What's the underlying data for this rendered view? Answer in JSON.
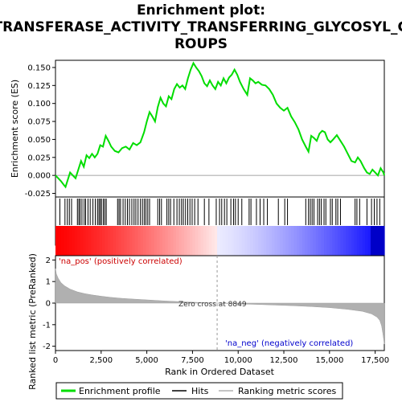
{
  "chart_data": {
    "type": "line",
    "title_lines": [
      "Enrichment plot:",
      "TRANSFERASE_ACTIVITY_TRANSFERRING_GLYCOSYL_G",
      "ROUPS"
    ],
    "xlabel": "Rank in Ordered Dataset",
    "es_ylabel": "Enrichment score (ES)",
    "metric_ylabel": "Ranked list metric (PreRanked)",
    "xlim": [
      0,
      18000
    ],
    "es_ylim": [
      -0.03,
      0.16
    ],
    "metric_ylim": [
      -2.2,
      2.2
    ],
    "x_ticks": [
      0,
      2500,
      5000,
      7500,
      10000,
      12500,
      15000,
      17500
    ],
    "x_tick_labels": [
      "0",
      "2,500",
      "5,000",
      "7,500",
      "10,000",
      "12,500",
      "15,000",
      "17,500"
    ],
    "es_ticks": [
      -0.025,
      0.0,
      0.025,
      0.05,
      0.075,
      0.1,
      0.125,
      0.15
    ],
    "es_tick_labels": [
      "-0.025",
      "0.000",
      "0.025",
      "0.050",
      "0.075",
      "0.100",
      "0.125",
      "0.150"
    ],
    "metric_ticks": [
      -2,
      -1,
      0,
      1,
      2
    ],
    "metric_tick_labels": [
      "-2",
      "-1",
      "0",
      "1",
      "2"
    ],
    "zero_cross_label": "Zero cross at 8849",
    "zero_cross": 8849,
    "pos_label": "'na_pos' (positively correlated)",
    "neg_label": "'na_neg' (negatively correlated)",
    "legend": [
      "Enrichment profile",
      "Hits",
      "Ranking metric scores"
    ],
    "colors": {
      "es_line": "#00dd00",
      "hits": "#000000",
      "metric": "#b0b0b0",
      "pos": "#ff0000",
      "neg": "#0000ff"
    },
    "es_profile": [
      [
        0,
        0.0
      ],
      [
        150,
        -0.004
      ],
      [
        300,
        -0.008
      ],
      [
        450,
        -0.013
      ],
      [
        550,
        -0.016
      ],
      [
        650,
        -0.008
      ],
      [
        800,
        0.004
      ],
      [
        950,
        0.0
      ],
      [
        1100,
        -0.004
      ],
      [
        1250,
        0.008
      ],
      [
        1400,
        0.02
      ],
      [
        1550,
        0.012
      ],
      [
        1700,
        0.028
      ],
      [
        1850,
        0.024
      ],
      [
        2000,
        0.03
      ],
      [
        2150,
        0.025
      ],
      [
        2300,
        0.03
      ],
      [
        2450,
        0.042
      ],
      [
        2600,
        0.04
      ],
      [
        2750,
        0.055
      ],
      [
        2900,
        0.048
      ],
      [
        3050,
        0.04
      ],
      [
        3250,
        0.034
      ],
      [
        3450,
        0.032
      ],
      [
        3650,
        0.038
      ],
      [
        3850,
        0.04
      ],
      [
        4050,
        0.036
      ],
      [
        4250,
        0.045
      ],
      [
        4450,
        0.042
      ],
      [
        4650,
        0.046
      ],
      [
        4850,
        0.06
      ],
      [
        5000,
        0.075
      ],
      [
        5150,
        0.088
      ],
      [
        5300,
        0.082
      ],
      [
        5450,
        0.075
      ],
      [
        5600,
        0.095
      ],
      [
        5750,
        0.108
      ],
      [
        5900,
        0.1
      ],
      [
        6050,
        0.096
      ],
      [
        6200,
        0.11
      ],
      [
        6350,
        0.106
      ],
      [
        6500,
        0.12
      ],
      [
        6650,
        0.127
      ],
      [
        6800,
        0.122
      ],
      [
        6950,
        0.125
      ],
      [
        7100,
        0.12
      ],
      [
        7250,
        0.135
      ],
      [
        7400,
        0.147
      ],
      [
        7550,
        0.156
      ],
      [
        7700,
        0.15
      ],
      [
        7850,
        0.145
      ],
      [
        8000,
        0.138
      ],
      [
        8150,
        0.128
      ],
      [
        8300,
        0.124
      ],
      [
        8450,
        0.132
      ],
      [
        8600,
        0.125
      ],
      [
        8750,
        0.12
      ],
      [
        8900,
        0.13
      ],
      [
        9050,
        0.125
      ],
      [
        9200,
        0.135
      ],
      [
        9350,
        0.128
      ],
      [
        9500,
        0.136
      ],
      [
        9650,
        0.14
      ],
      [
        9800,
        0.147
      ],
      [
        9950,
        0.14
      ],
      [
        10100,
        0.13
      ],
      [
        10300,
        0.12
      ],
      [
        10500,
        0.112
      ],
      [
        10650,
        0.135
      ],
      [
        10800,
        0.132
      ],
      [
        10950,
        0.128
      ],
      [
        11100,
        0.13
      ],
      [
        11300,
        0.126
      ],
      [
        11500,
        0.125
      ],
      [
        11700,
        0.12
      ],
      [
        11900,
        0.112
      ],
      [
        12100,
        0.1
      ],
      [
        12300,
        0.094
      ],
      [
        12500,
        0.09
      ],
      [
        12700,
        0.094
      ],
      [
        12900,
        0.082
      ],
      [
        13100,
        0.074
      ],
      [
        13300,
        0.064
      ],
      [
        13500,
        0.05
      ],
      [
        13700,
        0.04
      ],
      [
        13850,
        0.033
      ],
      [
        14000,
        0.055
      ],
      [
        14150,
        0.052
      ],
      [
        14300,
        0.048
      ],
      [
        14450,
        0.058
      ],
      [
        14600,
        0.062
      ],
      [
        14750,
        0.06
      ],
      [
        14900,
        0.05
      ],
      [
        15050,
        0.046
      ],
      [
        15200,
        0.05
      ],
      [
        15400,
        0.056
      ],
      [
        15600,
        0.048
      ],
      [
        15800,
        0.04
      ],
      [
        16000,
        0.03
      ],
      [
        16200,
        0.02
      ],
      [
        16400,
        0.018
      ],
      [
        16550,
        0.025
      ],
      [
        16700,
        0.02
      ],
      [
        16900,
        0.01
      ],
      [
        17050,
        0.004
      ],
      [
        17200,
        0.002
      ],
      [
        17350,
        0.008
      ],
      [
        17500,
        0.004
      ],
      [
        17650,
        0.0
      ],
      [
        17800,
        0.01
      ],
      [
        17950,
        0.004
      ],
      [
        18000,
        0.0
      ]
    ],
    "hits": [
      240,
      520,
      650,
      760,
      880,
      1200,
      1280,
      1350,
      1450,
      1570,
      1650,
      1780,
      1900,
      2050,
      2180,
      2300,
      2380,
      2450,
      2520,
      2620,
      2700,
      2780,
      3400,
      3480,
      3560,
      3700,
      3820,
      3940,
      4050,
      4180,
      4300,
      4400,
      4520,
      4650,
      4760,
      4860,
      4950,
      5050,
      5150,
      5600,
      5700,
      5800,
      6100,
      6200,
      6300,
      6480,
      6650,
      6780,
      6900,
      7000,
      7120,
      7240,
      7360,
      7480,
      7620,
      7800,
      8150,
      8400,
      8800,
      8980,
      9100,
      9250,
      9380,
      9600,
      9750,
      9850,
      10000,
      10200,
      10600,
      10700,
      11000,
      11200,
      11400,
      11600,
      12200,
      12550,
      12700,
      13700,
      13850,
      13950,
      14050,
      14150,
      14350,
      14450,
      14550,
      14700,
      14800,
      15050,
      15150,
      15350,
      15450,
      15600,
      16400,
      16500,
      16650,
      17050,
      17300,
      17450,
      17600,
      17750
    ],
    "metric_profile": [
      [
        0,
        1.6
      ],
      [
        50,
        1.35
      ],
      [
        150,
        1.15
      ],
      [
        300,
        0.95
      ],
      [
        500,
        0.8
      ],
      [
        800,
        0.65
      ],
      [
        1200,
        0.52
      ],
      [
        1600,
        0.44
      ],
      [
        2000,
        0.38
      ],
      [
        2500,
        0.32
      ],
      [
        3000,
        0.27
      ],
      [
        3500,
        0.23
      ],
      [
        4000,
        0.2
      ],
      [
        5000,
        0.15
      ],
      [
        6000,
        0.1
      ],
      [
        7000,
        0.06
      ],
      [
        8000,
        0.025
      ],
      [
        8849,
        0.0
      ],
      [
        10000,
        -0.035
      ],
      [
        11000,
        -0.06
      ],
      [
        12000,
        -0.09
      ],
      [
        13000,
        -0.12
      ],
      [
        14000,
        -0.16
      ],
      [
        15000,
        -0.21
      ],
      [
        16000,
        -0.29
      ],
      [
        16800,
        -0.38
      ],
      [
        17300,
        -0.5
      ],
      [
        17600,
        -0.65
      ],
      [
        17750,
        -0.8
      ],
      [
        17850,
        -1.05
      ],
      [
        17920,
        -1.4
      ],
      [
        18000,
        -1.9
      ]
    ]
  }
}
